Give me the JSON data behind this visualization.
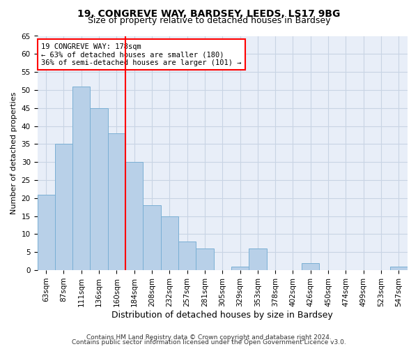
{
  "title1": "19, CONGREVE WAY, BARDSEY, LEEDS, LS17 9BG",
  "title2": "Size of property relative to detached houses in Bardsey",
  "xlabel": "Distribution of detached houses by size in Bardsey",
  "ylabel": "Number of detached properties",
  "categories": [
    "63sqm",
    "87sqm",
    "111sqm",
    "136sqm",
    "160sqm",
    "184sqm",
    "208sqm",
    "232sqm",
    "257sqm",
    "281sqm",
    "305sqm",
    "329sqm",
    "353sqm",
    "378sqm",
    "402sqm",
    "426sqm",
    "450sqm",
    "474sqm",
    "499sqm",
    "523sqm",
    "547sqm"
  ],
  "values": [
    21,
    35,
    51,
    45,
    38,
    30,
    18,
    15,
    8,
    6,
    0,
    1,
    6,
    0,
    0,
    2,
    0,
    0,
    0,
    0,
    1
  ],
  "bar_color": "#b8d0e8",
  "bar_edge_color": "#7aafd4",
  "vline_x": 4.5,
  "vline_color": "red",
  "annotation_text": "19 CONGREVE WAY: 178sqm\n← 63% of detached houses are smaller (180)\n36% of semi-detached houses are larger (101) →",
  "annotation_box_color": "white",
  "annotation_box_edge_color": "red",
  "ylim": [
    0,
    65
  ],
  "yticks": [
    0,
    5,
    10,
    15,
    20,
    25,
    30,
    35,
    40,
    45,
    50,
    55,
    60,
    65
  ],
  "grid_color": "#c8d4e4",
  "background_color": "#e8eef8",
  "footer1": "Contains HM Land Registry data © Crown copyright and database right 2024.",
  "footer2": "Contains public sector information licensed under the Open Government Licence v3.0.",
  "title1_fontsize": 10,
  "title2_fontsize": 9,
  "tick_fontsize": 7.5,
  "xlabel_fontsize": 9,
  "ylabel_fontsize": 8,
  "annotation_fontsize": 7.5,
  "footer_fontsize": 6.5
}
